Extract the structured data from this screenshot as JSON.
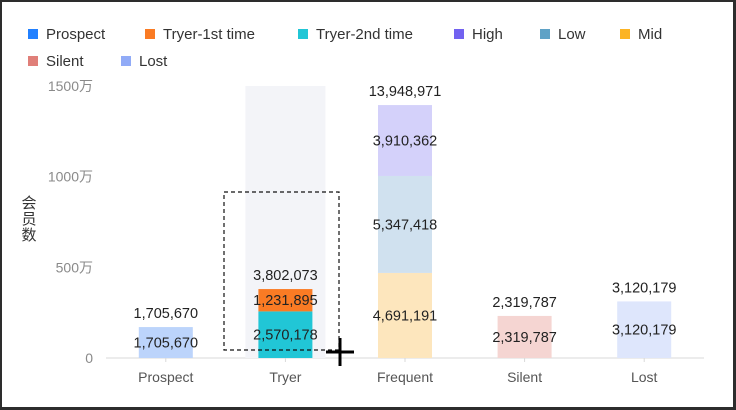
{
  "chart_data": {
    "type": "bar",
    "stacked": true,
    "title": "",
    "xlabel": "",
    "ylabel": "会员数",
    "ylim": [
      0,
      15000000
    ],
    "y_ticks": [
      {
        "value": 0,
        "label": "0"
      },
      {
        "value": 5000000,
        "label": "500万"
      },
      {
        "value": 10000000,
        "label": "1000万"
      },
      {
        "value": 15000000,
        "label": "1500万"
      }
    ],
    "categories": [
      "Prospect",
      "Tryer",
      "Frequent",
      "Silent",
      "Lost"
    ],
    "legend": [
      {
        "name": "Prospect",
        "color": "#2180ff"
      },
      {
        "name": "Tryer-1st time",
        "color": "#fa7b24"
      },
      {
        "name": "Tryer-2nd time",
        "color": "#21c6d6"
      },
      {
        "name": "High",
        "color": "#7262f0"
      },
      {
        "name": "Low",
        "color": "#5fa2c6"
      },
      {
        "name": "Mid",
        "color": "#fcb424"
      },
      {
        "name": "Silent",
        "color": "#e07f79"
      },
      {
        "name": "Lost",
        "color": "#91abf7"
      }
    ],
    "highlighted_category": "Tryer",
    "highlight_color": "#f3f4f8",
    "series": [
      {
        "name": "Prospect",
        "category": "Prospect",
        "value": 1705670,
        "label": "1,705,670",
        "color": "#bcd4fb"
      },
      {
        "name": "Tryer-2nd time",
        "category": "Tryer",
        "value": 2570178,
        "label": "2,570,178",
        "color": "#21c6d6"
      },
      {
        "name": "Tryer-1st time",
        "category": "Tryer",
        "value": 1231895,
        "label": "1,231,895",
        "color": "#fa7b24"
      },
      {
        "name": "Mid",
        "category": "Frequent",
        "value": 4691191,
        "label": "4,691,191",
        "color": "#fde6bd"
      },
      {
        "name": "Low",
        "category": "Frequent",
        "value": 5347418,
        "label": "5,347,418",
        "color": "#d0e1ef"
      },
      {
        "name": "High",
        "category": "Frequent",
        "value": 3910362,
        "label": "3,910,362",
        "color": "#d4d1fa"
      },
      {
        "name": "Silent",
        "category": "Silent",
        "value": 2319787,
        "label": "2,319,787",
        "color": "#f5d5d2"
      },
      {
        "name": "Lost",
        "category": "Lost",
        "value": 3120179,
        "label": "3,120,179",
        "color": "#dee6fc"
      }
    ],
    "totals": [
      {
        "category": "Prospect",
        "value": 1705670,
        "label": "1,705,670"
      },
      {
        "category": "Tryer",
        "value": 3802073,
        "label": "3,802,073"
      },
      {
        "category": "Frequent",
        "value": 13948971,
        "label": "13,948,971"
      },
      {
        "category": "Silent",
        "value": 2319787,
        "label": "2,319,787"
      },
      {
        "category": "Lost",
        "value": 3120179,
        "label": "3,120,179"
      }
    ]
  }
}
